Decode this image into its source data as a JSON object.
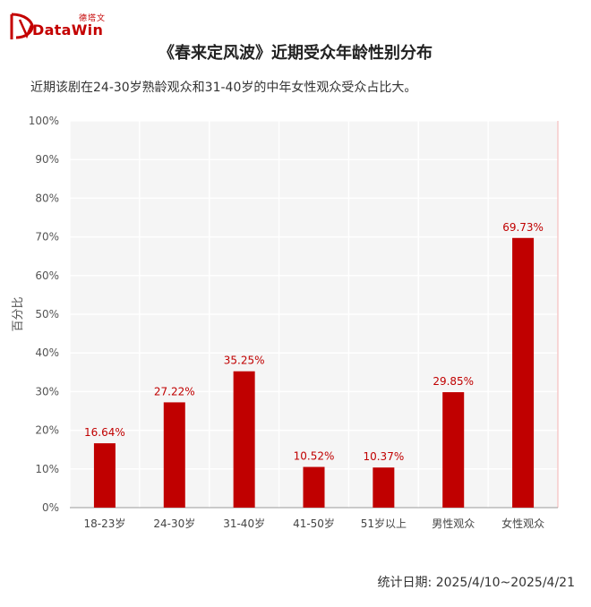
{
  "logo": {
    "brand_cn": "德塔文",
    "brand_en": "DataWin",
    "accent": "#c40000"
  },
  "header": {
    "title": "《春来定风波》近期受众年龄性别分布",
    "subtitle": "近期该剧在24-30岁熟龄观众和31-40岁的中年女性观众受众占比大。"
  },
  "footer": {
    "date_label": "统计日期:  2025/4/10~2025/4/21"
  },
  "chart_data": {
    "type": "bar",
    "categories": [
      "18-23岁",
      "24-30岁",
      "31-40岁",
      "41-50岁",
      "51岁以上",
      "男性观众",
      "女性观众"
    ],
    "values": [
      16.64,
      27.22,
      35.25,
      10.52,
      10.37,
      29.85,
      69.73
    ],
    "value_labels": [
      "16.64%",
      "27.22%",
      "35.25%",
      "10.52%",
      "10.37%",
      "29.85%",
      "69.73%"
    ],
    "ylabel": "百分比",
    "xlabel": "",
    "ylim": [
      0,
      100
    ],
    "yticks": [
      0,
      10,
      20,
      30,
      40,
      50,
      60,
      70,
      80,
      90,
      100
    ],
    "ytick_labels": [
      "0%",
      "10%",
      "20%",
      "30%",
      "40%",
      "50%",
      "60%",
      "70%",
      "80%",
      "90%",
      "100%"
    ],
    "bar_color": "#c00000",
    "label_color": "#c00000",
    "plot_background": "#f5f5f5",
    "grid": true
  }
}
